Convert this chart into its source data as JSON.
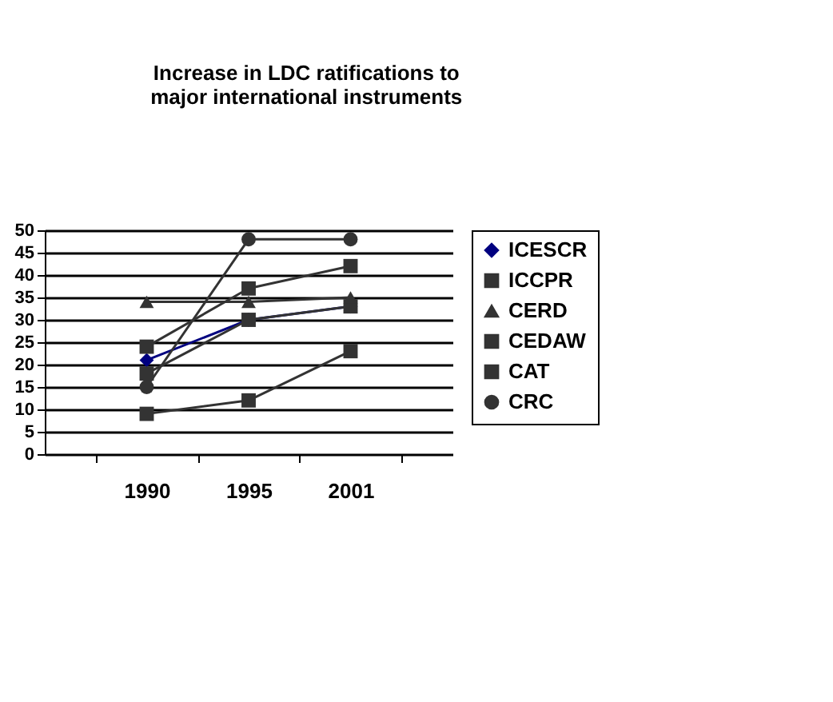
{
  "chart_data": {
    "type": "line",
    "title": "Increase in LDC ratifications to major international instruments",
    "categories": [
      "1990",
      "1995",
      "2001"
    ],
    "series": [
      {
        "name": "ICESCR",
        "color": "#000080",
        "marker": "diamond",
        "values": [
          21,
          30,
          33
        ]
      },
      {
        "name": "ICCPR",
        "color": "#333333",
        "marker": "square",
        "values": [
          18,
          30,
          33
        ]
      },
      {
        "name": "CERD",
        "color": "#333333",
        "marker": "triangle",
        "values": [
          34,
          34,
          35
        ]
      },
      {
        "name": "CEDAW",
        "color": "#333333",
        "marker": "square",
        "values": [
          24,
          37,
          42
        ]
      },
      {
        "name": "CAT",
        "color": "#333333",
        "marker": "square",
        "values": [
          9,
          12,
          23
        ]
      },
      {
        "name": "CRC",
        "color": "#333333",
        "marker": "circle",
        "values": [
          15,
          48,
          48
        ]
      }
    ],
    "ylim": [
      0,
      50
    ],
    "yticks": [
      0,
      5,
      10,
      15,
      20,
      25,
      30,
      35,
      40,
      45,
      50
    ],
    "grid": "y",
    "legend": "right"
  }
}
